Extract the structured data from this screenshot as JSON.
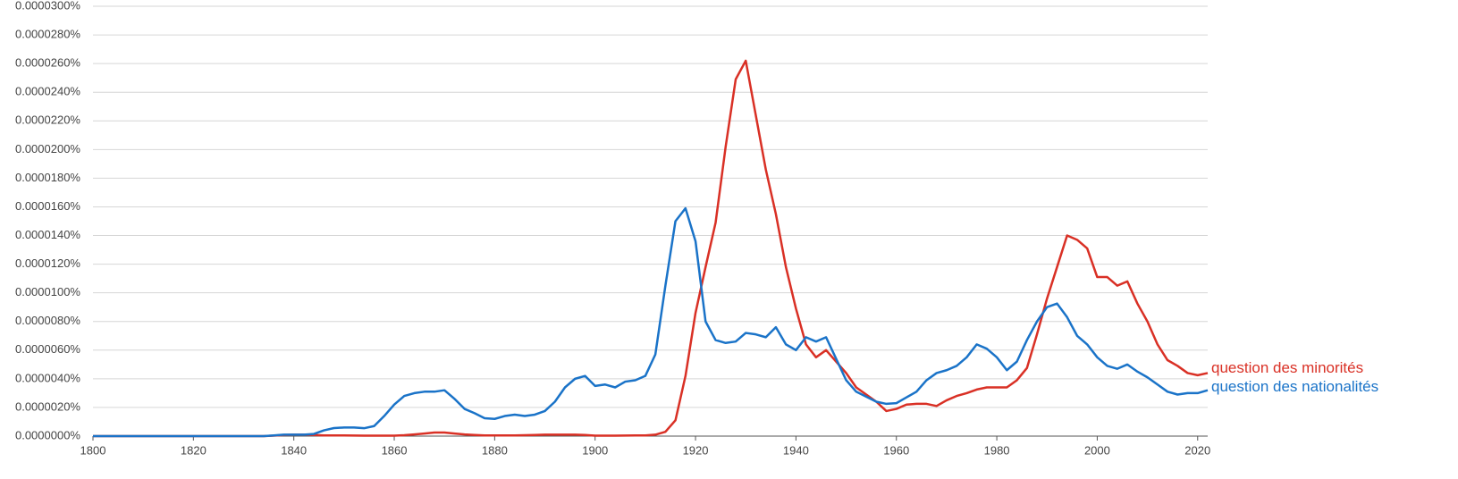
{
  "chart_data": {
    "type": "line",
    "xlim": [
      1800,
      2022
    ],
    "xticks": [
      1800,
      1820,
      1840,
      1860,
      1880,
      1900,
      1920,
      1940,
      1960,
      1980,
      2000,
      2020
    ],
    "ylim": [
      0,
      3e-05
    ],
    "yticks": [
      {
        "value": 0,
        "label": "0.0000000%"
      },
      {
        "value": 2e-06,
        "label": "0.0000020%"
      },
      {
        "value": 4e-06,
        "label": "0.0000040%"
      },
      {
        "value": 6e-06,
        "label": "0.0000060%"
      },
      {
        "value": 8e-06,
        "label": "0.0000080%"
      },
      {
        "value": 1e-05,
        "label": "0.0000100%"
      },
      {
        "value": 1.2e-05,
        "label": "0.0000120%"
      },
      {
        "value": 1.4e-05,
        "label": "0.0000140%"
      },
      {
        "value": 1.6e-05,
        "label": "0.0000160%"
      },
      {
        "value": 1.8e-05,
        "label": "0.0000180%"
      },
      {
        "value": 2e-05,
        "label": "0.0000200%"
      },
      {
        "value": 2.2e-05,
        "label": "0.0000220%"
      },
      {
        "value": 2.4e-05,
        "label": "0.0000240%"
      },
      {
        "value": 2.6e-05,
        "label": "0.0000260%"
      },
      {
        "value": 2.8e-05,
        "label": "0.0000280%"
      },
      {
        "value": 3e-05,
        "label": "0.0000300%"
      }
    ],
    "grid": true,
    "x": [
      1800,
      1802,
      1804,
      1806,
      1808,
      1810,
      1812,
      1814,
      1816,
      1818,
      1820,
      1822,
      1824,
      1826,
      1828,
      1830,
      1832,
      1834,
      1836,
      1838,
      1840,
      1842,
      1844,
      1846,
      1848,
      1850,
      1852,
      1854,
      1856,
      1858,
      1860,
      1862,
      1864,
      1866,
      1868,
      1870,
      1872,
      1874,
      1876,
      1878,
      1880,
      1882,
      1884,
      1886,
      1888,
      1890,
      1892,
      1894,
      1896,
      1898,
      1900,
      1902,
      1904,
      1906,
      1908,
      1910,
      1912,
      1914,
      1916,
      1918,
      1920,
      1922,
      1924,
      1926,
      1928,
      1930,
      1932,
      1934,
      1936,
      1938,
      1940,
      1942,
      1944,
      1946,
      1948,
      1950,
      1952,
      1954,
      1956,
      1958,
      1960,
      1962,
      1964,
      1966,
      1968,
      1970,
      1972,
      1974,
      1976,
      1978,
      1980,
      1982,
      1984,
      1986,
      1988,
      1990,
      1992,
      1994,
      1996,
      1998,
      2000,
      2002,
      2004,
      2006,
      2008,
      2010,
      2012,
      2014,
      2016,
      2018,
      2020,
      2022
    ],
    "series": [
      {
        "name": "question des minorités",
        "color": "#d93025",
        "values": [
          0,
          0,
          0,
          0,
          0,
          0,
          0,
          0,
          0,
          0,
          0,
          0,
          0,
          0,
          0,
          0,
          0,
          0,
          3e-08,
          8e-08,
          1e-07,
          1e-07,
          8e-08,
          5e-08,
          5e-08,
          5e-08,
          4e-08,
          3e-08,
          3e-08,
          3e-08,
          3e-08,
          6e-08,
          1.2e-07,
          1.8e-07,
          2.5e-07,
          2.5e-07,
          1.8e-07,
          1.2e-07,
          8e-08,
          5e-08,
          5e-08,
          5e-08,
          5e-08,
          6e-08,
          8e-08,
          1e-07,
          1e-07,
          1e-07,
          1e-07,
          8e-08,
          3e-08,
          3e-08,
          3e-08,
          4e-08,
          5e-08,
          5e-08,
          1e-07,
          3e-07,
          1.1e-06,
          4.2e-06,
          8.6e-06,
          1.18e-05,
          1.49e-05,
          2.02e-05,
          2.49e-05,
          2.62e-05,
          2.24e-05,
          1.86e-05,
          1.55e-05,
          1.18e-05,
          8.9e-06,
          6.4e-06,
          5.5e-06,
          6e-06,
          5.2e-06,
          4.4e-06,
          3.4e-06,
          2.9e-06,
          2.4e-06,
          1.75e-06,
          1.9e-06,
          2.2e-06,
          2.25e-06,
          2.25e-06,
          2.1e-06,
          2.5e-06,
          2.8e-06,
          3e-06,
          3.25e-06,
          3.4e-06,
          3.4e-06,
          3.4e-06,
          3.9e-06,
          4.75e-06,
          7.1e-06,
          9.6e-06,
          1.18e-05,
          1.4e-05,
          1.37e-05,
          1.31e-05,
          1.11e-05,
          1.11e-05,
          1.05e-05,
          1.08e-05,
          9.25e-06,
          8e-06,
          6.4e-06,
          5.3e-06,
          4.9e-06,
          4.4e-06,
          4.25e-06,
          4.4e-06
        ]
      },
      {
        "name": "question des nationalités",
        "color": "#1a73c8",
        "values": [
          0,
          0,
          0,
          0,
          0,
          0,
          0,
          0,
          0,
          0,
          0,
          0,
          0,
          0,
          0,
          0,
          0,
          0,
          5e-08,
          1e-07,
          1e-07,
          1e-07,
          1.5e-07,
          4e-07,
          5.6e-07,
          6e-07,
          6e-07,
          5.5e-07,
          7e-07,
          1.4e-06,
          2.2e-06,
          2.8e-06,
          3e-06,
          3.1e-06,
          3.1e-06,
          3.2e-06,
          2.6e-06,
          1.9e-06,
          1.6e-06,
          1.25e-06,
          1.2e-06,
          1.4e-06,
          1.5e-06,
          1.4e-06,
          1.5e-06,
          1.75e-06,
          2.4e-06,
          3.4e-06,
          4e-06,
          4.2e-06,
          3.5e-06,
          3.6e-06,
          3.4e-06,
          3.8e-06,
          3.9e-06,
          4.2e-06,
          5.7e-06,
          1.05e-05,
          1.5e-05,
          1.59e-05,
          1.36e-05,
          8e-06,
          6.7e-06,
          6.5e-06,
          6.6e-06,
          7.2e-06,
          7.1e-06,
          6.9e-06,
          7.6e-06,
          6.4e-06,
          6e-06,
          6.9e-06,
          6.6e-06,
          6.9e-06,
          5.4e-06,
          3.9e-06,
          3.1e-06,
          2.75e-06,
          2.4e-06,
          2.25e-06,
          2.3e-06,
          2.7e-06,
          3.1e-06,
          3.9e-06,
          4.4e-06,
          4.6e-06,
          4.9e-06,
          5.5e-06,
          6.4e-06,
          6.1e-06,
          5.5e-06,
          4.6e-06,
          5.2e-06,
          6.7e-06,
          8e-06,
          9e-06,
          9.25e-06,
          8.3e-06,
          7e-06,
          6.4e-06,
          5.5e-06,
          4.9e-06,
          4.7e-06,
          5e-06,
          4.5e-06,
          4.1e-06,
          3.6e-06,
          3.1e-06,
          2.9e-06,
          3e-06,
          3e-06,
          3.2e-06
        ]
      }
    ]
  }
}
